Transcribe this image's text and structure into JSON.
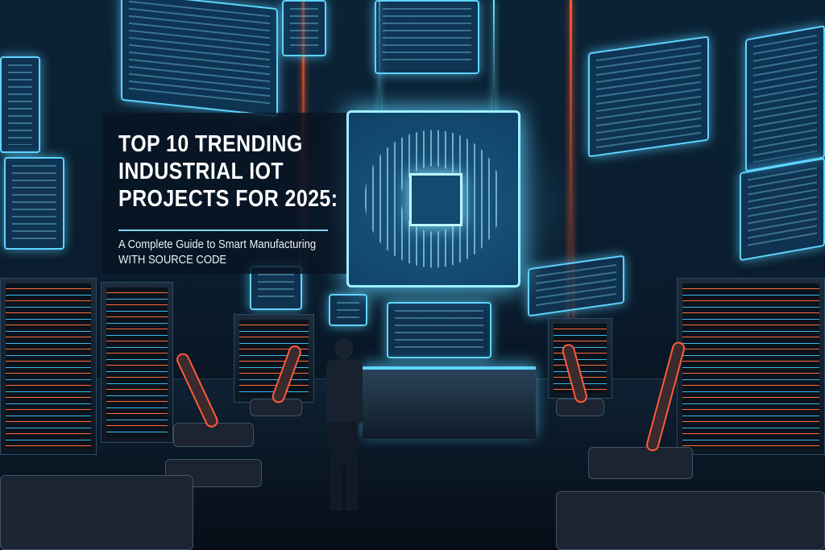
{
  "hero": {
    "title_lines": [
      "TOP 10 TRENDING",
      "INDUSTRIAL IOT",
      "PROJECTS FOR 2025:"
    ],
    "subtitle_lines": [
      "A Complete Guide to Smart Manufacturing",
      "WITH SOURCE CODE"
    ]
  },
  "colors": {
    "neon_blue": "#5fd4ff",
    "neon_orange": "#ff5a2a",
    "panel_bg": "#081422"
  }
}
